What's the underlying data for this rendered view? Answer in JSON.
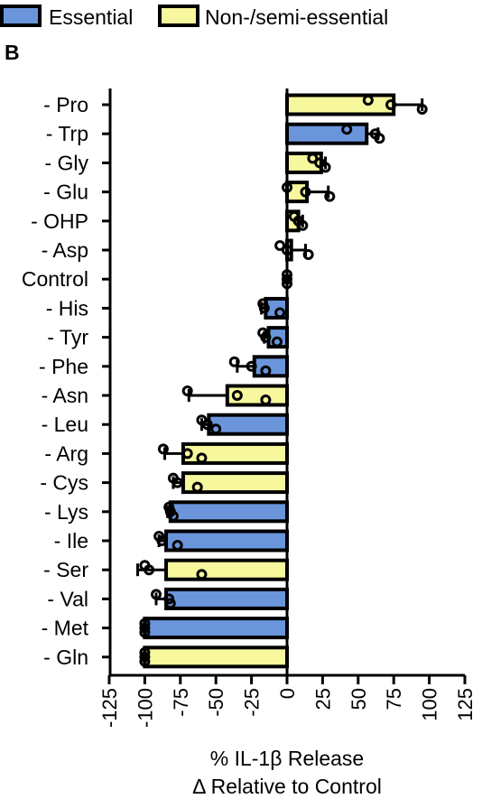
{
  "panel_label": "B",
  "legend": [
    {
      "label": "Essential",
      "color": "#6b95db"
    },
    {
      "label": "Non-/semi-essential",
      "color": "#f7f79d"
    }
  ],
  "xlabel_line1": "% IL-1β Release",
  "xlabel_line2": "Δ Relative to Control",
  "chart_data": {
    "type": "bar",
    "orientation": "horizontal",
    "xlim": [
      -125,
      125
    ],
    "xticks": [
      -125,
      -100,
      -75,
      -50,
      -25,
      0,
      25,
      50,
      75,
      100,
      125
    ],
    "xlabel": "% IL-1β Release Δ Relative to Control",
    "series_colors": {
      "essential": "#6b95db",
      "non_essential": "#f7f79d"
    },
    "categories": [
      {
        "label": "- Pro",
        "group": "non_essential",
        "value": 75,
        "error": 20,
        "points": [
          57,
          73,
          95
        ]
      },
      {
        "label": "- Trp",
        "group": "essential",
        "value": 56,
        "error": 8,
        "points": [
          42,
          62,
          65
        ]
      },
      {
        "label": "- Gly",
        "group": "non_essential",
        "value": 24,
        "error": 3,
        "points": [
          18,
          23,
          27
        ]
      },
      {
        "label": "- Glu",
        "group": "non_essential",
        "value": 14,
        "error": 15,
        "points": [
          0,
          13,
          30
        ]
      },
      {
        "label": "- OHP",
        "group": "non_essential",
        "value": 8,
        "error": 3,
        "points": [
          5,
          8,
          11
        ]
      },
      {
        "label": "- Asp",
        "group": "non_essential",
        "value": 3,
        "error": 10,
        "points": [
          -5,
          0,
          15
        ]
      },
      {
        "label": "Control",
        "group": "non_essential",
        "value": 0,
        "error": 0,
        "points": [
          0,
          0,
          0
        ]
      },
      {
        "label": "- His",
        "group": "essential",
        "value": -15,
        "error": 3,
        "points": [
          -17,
          -16,
          -5
        ]
      },
      {
        "label": "- Tyr",
        "group": "essential",
        "value": -13,
        "error": 3,
        "points": [
          -17,
          -15,
          -7
        ]
      },
      {
        "label": "- Phe",
        "group": "essential",
        "value": -23,
        "error": 12,
        "points": [
          -37,
          -25,
          -15
        ]
      },
      {
        "label": "- Asn",
        "group": "non_essential",
        "value": -42,
        "error": 27,
        "points": [
          -70,
          -35,
          -15
        ]
      },
      {
        "label": "- Leu",
        "group": "essential",
        "value": -55,
        "error": 5,
        "points": [
          -60,
          -56,
          -50
        ]
      },
      {
        "label": "- Arg",
        "group": "non_essential",
        "value": -73,
        "error": 13,
        "points": [
          -87,
          -70,
          -60
        ]
      },
      {
        "label": "- Cys",
        "group": "non_essential",
        "value": -73,
        "error": 7,
        "points": [
          -80,
          -77,
          -63
        ]
      },
      {
        "label": "- Lys",
        "group": "essential",
        "value": -82,
        "error": 2,
        "points": [
          -83,
          -82,
          -80
        ]
      },
      {
        "label": "- Ile",
        "group": "essential",
        "value": -85,
        "error": 5,
        "points": [
          -90,
          -88,
          -77
        ]
      },
      {
        "label": "- Ser",
        "group": "non_essential",
        "value": -85,
        "error": 20,
        "points": [
          -100,
          -97,
          -60
        ]
      },
      {
        "label": "- Val",
        "group": "essential",
        "value": -85,
        "error": 7,
        "points": [
          -92,
          -83,
          -82
        ]
      },
      {
        "label": "- Met",
        "group": "essential",
        "value": -100,
        "error": 0,
        "points": [
          -100,
          -100,
          -100
        ]
      },
      {
        "label": "- Gln",
        "group": "non_essential",
        "value": -100,
        "error": 0,
        "points": [
          -100,
          -100,
          -100
        ]
      }
    ]
  }
}
